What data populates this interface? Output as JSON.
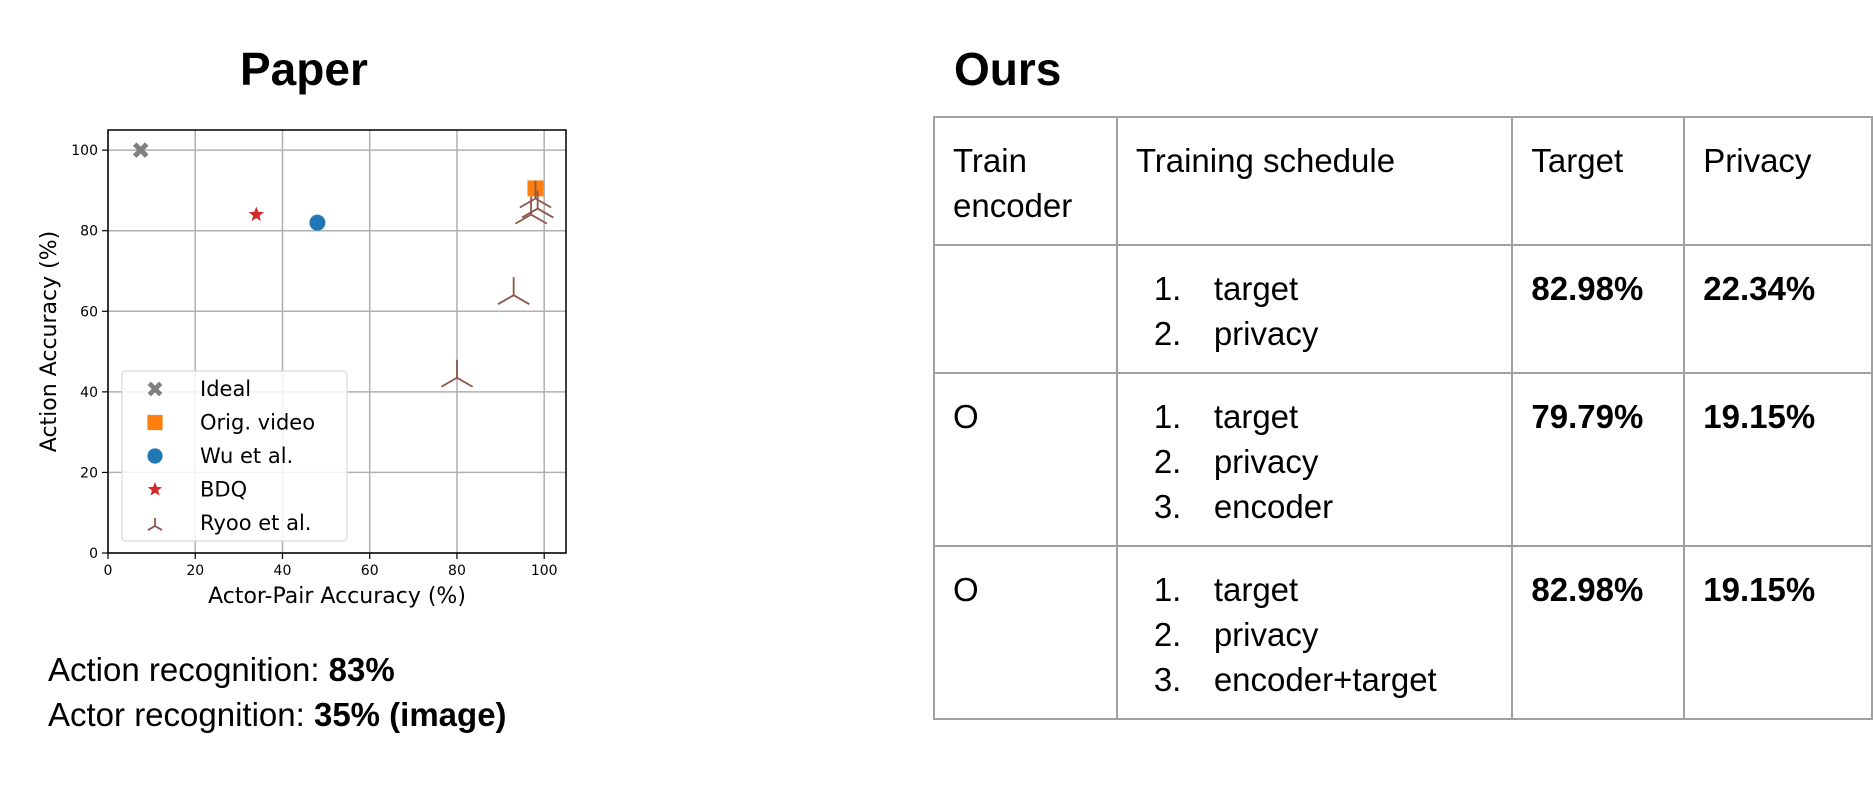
{
  "headings": {
    "left": "Paper",
    "right": "Ours"
  },
  "chart_data": {
    "type": "scatter",
    "xlabel": "Actor-Pair Accuracy (%)",
    "ylabel": "Action Accuracy (%)",
    "xlim": [
      0,
      105
    ],
    "ylim": [
      0,
      105
    ],
    "xticks": [
      0,
      20,
      40,
      60,
      80,
      100
    ],
    "yticks": [
      0,
      20,
      40,
      60,
      80,
      100
    ],
    "grid": true,
    "legend_position": "lower-left",
    "series": [
      {
        "name": "Ideal",
        "marker": "x",
        "color": "#808080",
        "points": [
          [
            7.5,
            100
          ]
        ]
      },
      {
        "name": "Orig. video",
        "marker": "square",
        "color": "#ff7f0e",
        "points": [
          [
            98,
            90.5
          ]
        ]
      },
      {
        "name": "Wu et al.",
        "marker": "circle",
        "color": "#1f77b4",
        "points": [
          [
            48,
            82
          ]
        ]
      },
      {
        "name": "BDQ",
        "marker": "star",
        "color": "#d62728",
        "points": [
          [
            34,
            84
          ]
        ]
      },
      {
        "name": "Ryoo et al.",
        "marker": "tri",
        "color": "#8c564b",
        "points": [
          [
            80,
            43.5
          ],
          [
            93,
            64
          ],
          [
            97,
            84
          ],
          [
            98.5,
            85.5
          ],
          [
            98,
            88
          ]
        ]
      }
    ]
  },
  "notes": [
    {
      "label": "Action recognition: ",
      "value": "83%"
    },
    {
      "label": "Actor recognition: ",
      "value": "35% (image)"
    }
  ],
  "table": {
    "headers": [
      "Train\nencoder",
      "Training schedule",
      "Target",
      "Privacy"
    ],
    "rows": [
      {
        "train_encoder": "",
        "schedule": [
          "target",
          "privacy"
        ],
        "target": "82.98%",
        "privacy": "22.34%"
      },
      {
        "train_encoder": "O",
        "schedule": [
          "target",
          "privacy",
          "encoder"
        ],
        "target": "79.79%",
        "privacy": "19.15%"
      },
      {
        "train_encoder": "O",
        "schedule": [
          "target",
          "privacy",
          "encoder+target"
        ],
        "target": "82.98%",
        "privacy": "19.15%"
      }
    ]
  }
}
